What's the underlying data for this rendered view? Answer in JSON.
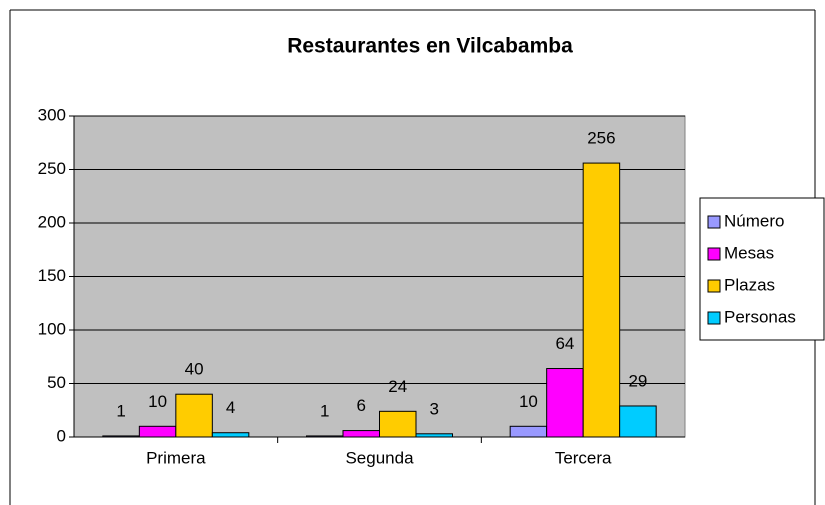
{
  "chart_data": {
    "type": "bar",
    "title": "Restaurantes en Vilcabamba",
    "categories": [
      "Primera",
      "Segunda",
      "Tercera"
    ],
    "series": [
      {
        "name": "Número",
        "color": "#9999ff",
        "values": [
          1,
          1,
          10
        ]
      },
      {
        "name": "Mesas",
        "color": "#ff00ff",
        "values": [
          10,
          6,
          64
        ]
      },
      {
        "name": "Plazas",
        "color": "#ffcc00",
        "values": [
          40,
          24,
          256
        ]
      },
      {
        "name": "Personas",
        "color": "#00ccff",
        "values": [
          4,
          3,
          29
        ]
      }
    ],
    "ylim": [
      0,
      300
    ],
    "yticks": [
      0,
      50,
      100,
      150,
      200,
      250,
      300
    ],
    "grid": true,
    "legend": "right"
  }
}
